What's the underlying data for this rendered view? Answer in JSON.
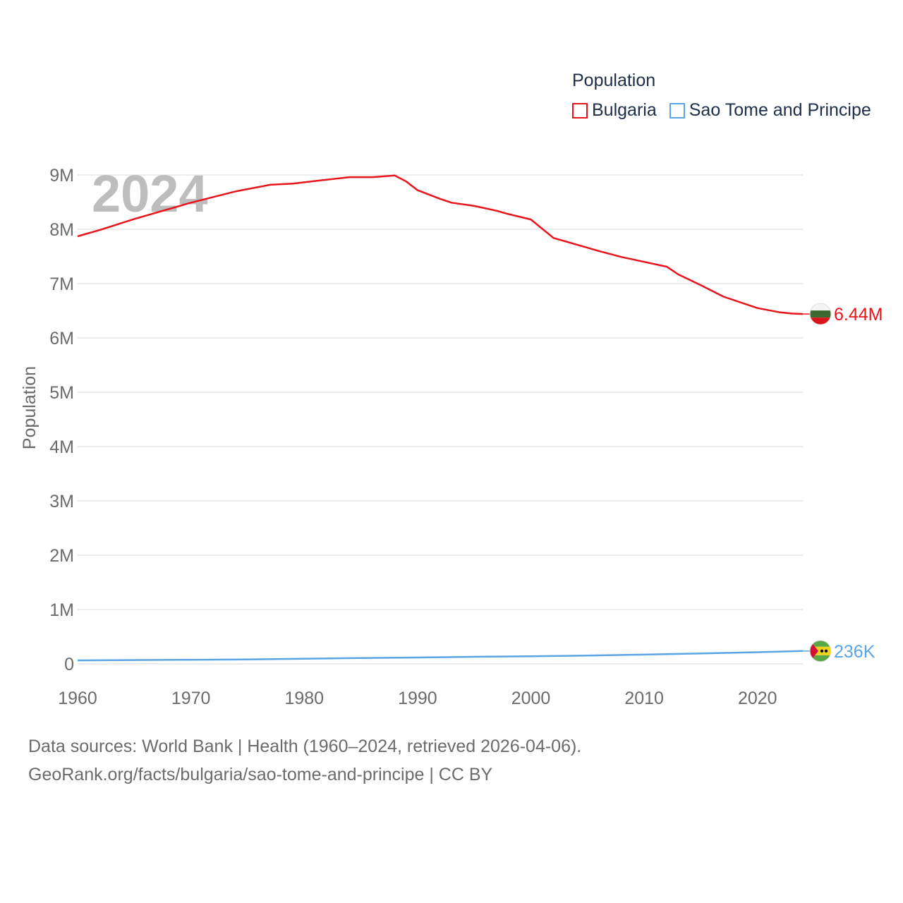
{
  "legend": {
    "title": "Population",
    "items": [
      "Bulgaria",
      "Sao Tome and Principe"
    ]
  },
  "year_label": "2024",
  "footer": {
    "line1": "Data sources: World Bank | Health (1960–2024, retrieved 2026-04-06).",
    "line2": "GeoRank.org/facts/bulgaria/sao-tome-and-principe | CC BY"
  },
  "chart_data": {
    "type": "line",
    "title": "Population",
    "xlabel": "",
    "ylabel": "Population",
    "xlim": [
      1960,
      2024
    ],
    "ylim": [
      0,
      9000000
    ],
    "x_ticks": [
      1960,
      1970,
      1980,
      1990,
      2000,
      2010,
      2020
    ],
    "x_tick_labels": [
      "1960",
      "1970",
      "1980",
      "1990",
      "2000",
      "2010",
      "2020"
    ],
    "y_ticks": [
      0,
      1000000,
      2000000,
      3000000,
      4000000,
      5000000,
      6000000,
      7000000,
      8000000,
      9000000
    ],
    "y_tick_labels": [
      "0",
      "1M",
      "2M",
      "3M",
      "4M",
      "5M",
      "6M",
      "7M",
      "8M",
      "9M"
    ],
    "grid": true,
    "legend_position": "top-right",
    "series": [
      {
        "name": "Bulgaria",
        "color": "#e8141c",
        "end_label": "6.44M",
        "points": [
          [
            1960,
            7870000
          ],
          [
            1962,
            7990000
          ],
          [
            1965,
            8190000
          ],
          [
            1970,
            8490000
          ],
          [
            1974,
            8700000
          ],
          [
            1977,
            8820000
          ],
          [
            1979,
            8840000
          ],
          [
            1981,
            8890000
          ],
          [
            1984,
            8960000
          ],
          [
            1986,
            8960000
          ],
          [
            1988,
            8990000
          ],
          [
            1989,
            8880000
          ],
          [
            1990,
            8720000
          ],
          [
            1992,
            8560000
          ],
          [
            1993,
            8490000
          ],
          [
            1995,
            8430000
          ],
          [
            1997,
            8340000
          ],
          [
            1998,
            8280000
          ],
          [
            2000,
            8180000
          ],
          [
            2002,
            7840000
          ],
          [
            2004,
            7720000
          ],
          [
            2006,
            7600000
          ],
          [
            2008,
            7490000
          ],
          [
            2010,
            7400000
          ],
          [
            2012,
            7310000
          ],
          [
            2013,
            7170000
          ],
          [
            2015,
            6970000
          ],
          [
            2017,
            6760000
          ],
          [
            2019,
            6620000
          ],
          [
            2020,
            6550000
          ],
          [
            2022,
            6470000
          ],
          [
            2023,
            6450000
          ],
          [
            2024,
            6440000
          ]
        ]
      },
      {
        "name": "Sao Tome and Principe",
        "color": "#5aa5e6",
        "end_label": "236K",
        "points": [
          [
            1960,
            64000
          ],
          [
            1965,
            70000
          ],
          [
            1970,
            75000
          ],
          [
            1975,
            82000
          ],
          [
            1980,
            95000
          ],
          [
            1985,
            108000
          ],
          [
            1990,
            117000
          ],
          [
            1995,
            130000
          ],
          [
            2000,
            139000
          ],
          [
            2005,
            153000
          ],
          [
            2010,
            170000
          ],
          [
            2015,
            192000
          ],
          [
            2020,
            214000
          ],
          [
            2024,
            236000
          ]
        ]
      }
    ]
  }
}
